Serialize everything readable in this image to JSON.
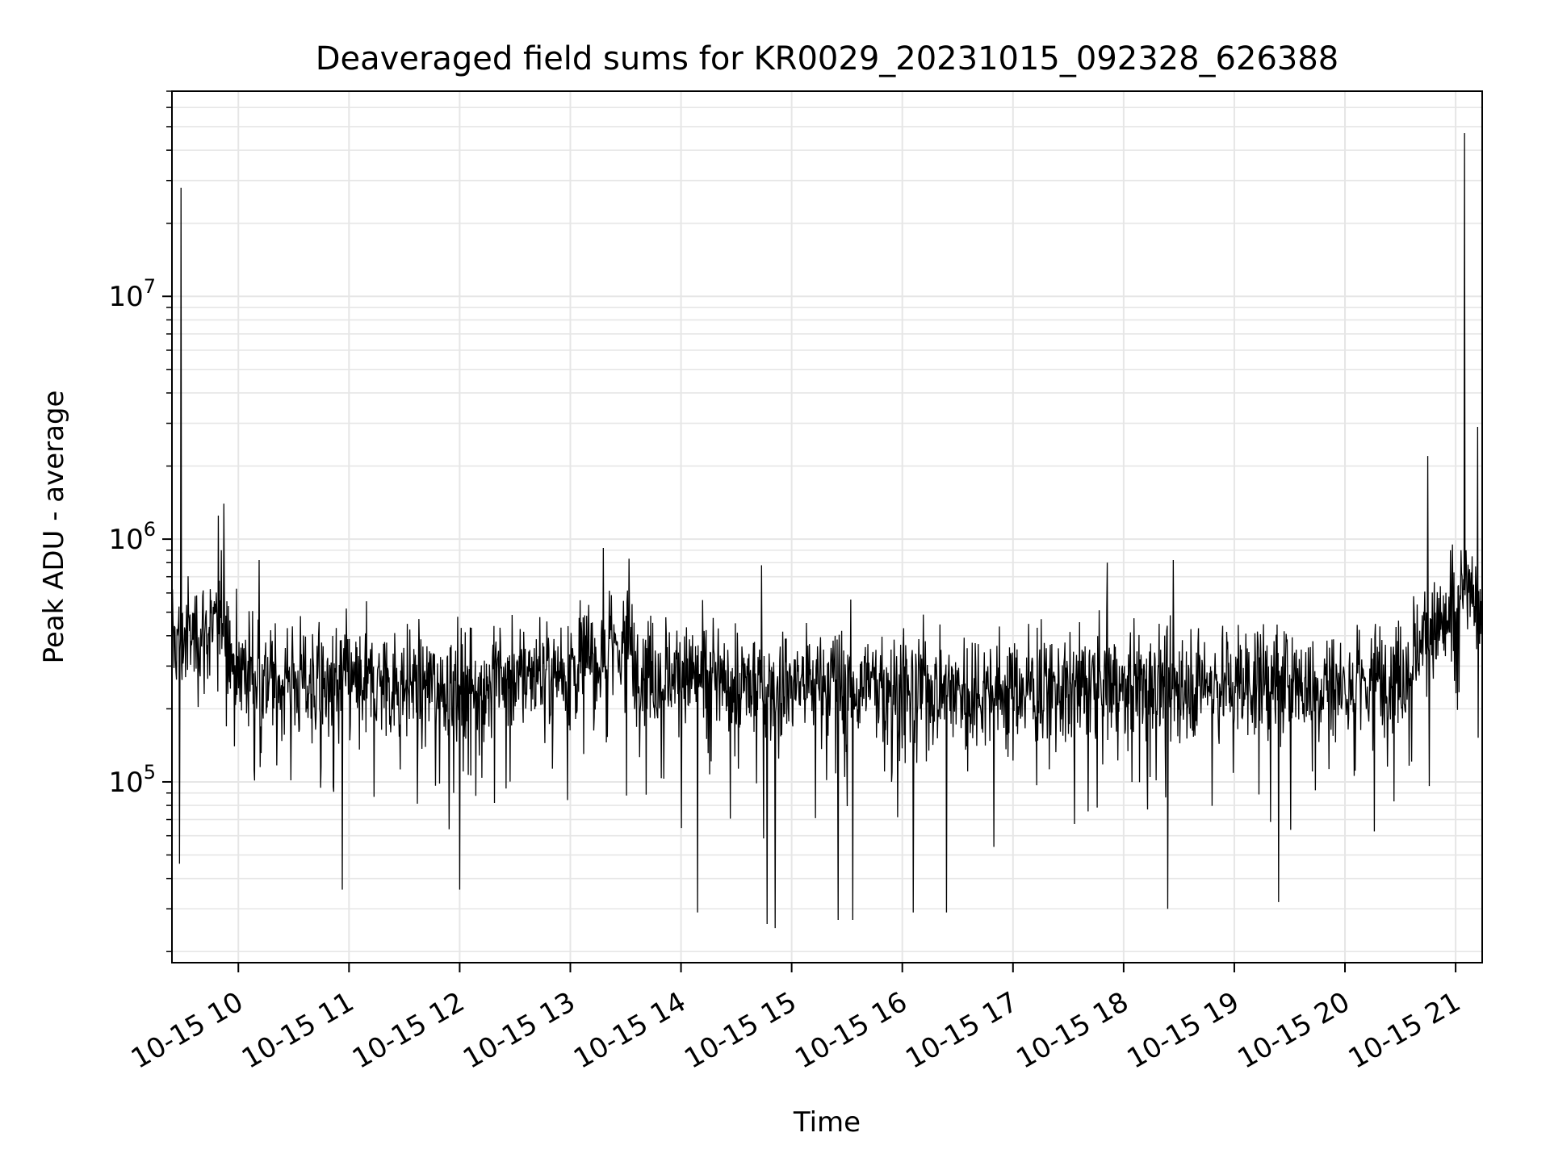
{
  "chart_data": {
    "type": "line",
    "title": "Deaveraged field sums for KR0029_20231015_092328_626388",
    "xlabel": "Time",
    "ylabel": "Peak ADU - average",
    "yscale": "log",
    "ylim": [
      18000,
      70000000
    ],
    "xlim_hours": [
      9.4,
      21.24
    ],
    "grid": true,
    "line_color": "#000000",
    "grid_color": "#e6e6e6",
    "x_ticks": [
      {
        "label": "10-15 10",
        "hour": 10
      },
      {
        "label": "10-15 11",
        "hour": 11
      },
      {
        "label": "10-15 12",
        "hour": 12
      },
      {
        "label": "10-15 13",
        "hour": 13
      },
      {
        "label": "10-15 14",
        "hour": 14
      },
      {
        "label": "10-15 15",
        "hour": 15
      },
      {
        "label": "10-15 16",
        "hour": 16
      },
      {
        "label": "10-15 17",
        "hour": 17
      },
      {
        "label": "10-15 18",
        "hour": 18
      },
      {
        "label": "10-15 19",
        "hour": 19
      },
      {
        "label": "10-15 20",
        "hour": 20
      },
      {
        "label": "10-15 21",
        "hour": 21
      }
    ],
    "y_ticks": [
      {
        "base": "10",
        "exp": "5",
        "value": 100000
      },
      {
        "base": "10",
        "exp": "6",
        "value": 1000000
      },
      {
        "base": "10",
        "exp": "7",
        "value": 10000000
      }
    ],
    "series": [
      {
        "name": "Peak ADU - average",
        "baseline_level": [
          [
            9.4,
            380000
          ],
          [
            9.8,
            420000
          ],
          [
            9.85,
            600000
          ],
          [
            9.95,
            300000
          ],
          [
            10.5,
            260000
          ],
          [
            12.0,
            250000
          ],
          [
            13.0,
            300000
          ],
          [
            13.5,
            380000
          ],
          [
            13.6,
            300000
          ],
          [
            14.5,
            250000
          ],
          [
            15.5,
            260000
          ],
          [
            16.5,
            240000
          ],
          [
            18.0,
            250000
          ],
          [
            19.0,
            260000
          ],
          [
            20.0,
            250000
          ],
          [
            20.5,
            280000
          ],
          [
            20.7,
            400000
          ],
          [
            21.0,
            460000
          ],
          [
            21.1,
            620000
          ],
          [
            21.24,
            520000
          ]
        ],
        "spikes": [
          {
            "hour": 9.48,
            "value": 28000000
          },
          {
            "hour": 21.08,
            "value": 47000000
          },
          {
            "hour": 20.75,
            "value": 2200000
          },
          {
            "hour": 21.2,
            "value": 2900000
          },
          {
            "hour": 9.87,
            "value": 1400000
          },
          {
            "hour": 9.82,
            "value": 1250000
          },
          {
            "hour": 13.3,
            "value": 920000
          },
          {
            "hour": 13.53,
            "value": 830000
          },
          {
            "hour": 10.19,
            "value": 820000
          },
          {
            "hour": 14.73,
            "value": 780000
          },
          {
            "hour": 17.85,
            "value": 800000
          },
          {
            "hour": 18.45,
            "value": 820000
          },
          {
            "hour": 20.97,
            "value": 950000
          },
          {
            "hour": 9.47,
            "value": 46000
          },
          {
            "hour": 14.15,
            "value": 29000
          },
          {
            "hour": 14.85,
            "value": 25000
          },
          {
            "hour": 14.78,
            "value": 26000
          },
          {
            "hour": 15.42,
            "value": 27000
          },
          {
            "hour": 15.55,
            "value": 27000
          },
          {
            "hour": 16.1,
            "value": 29000
          },
          {
            "hour": 16.4,
            "value": 29000
          },
          {
            "hour": 18.4,
            "value": 30000
          },
          {
            "hour": 19.4,
            "value": 32000
          },
          {
            "hour": 10.94,
            "value": 36000
          },
          {
            "hour": 12.0,
            "value": 36000
          }
        ]
      }
    ]
  }
}
